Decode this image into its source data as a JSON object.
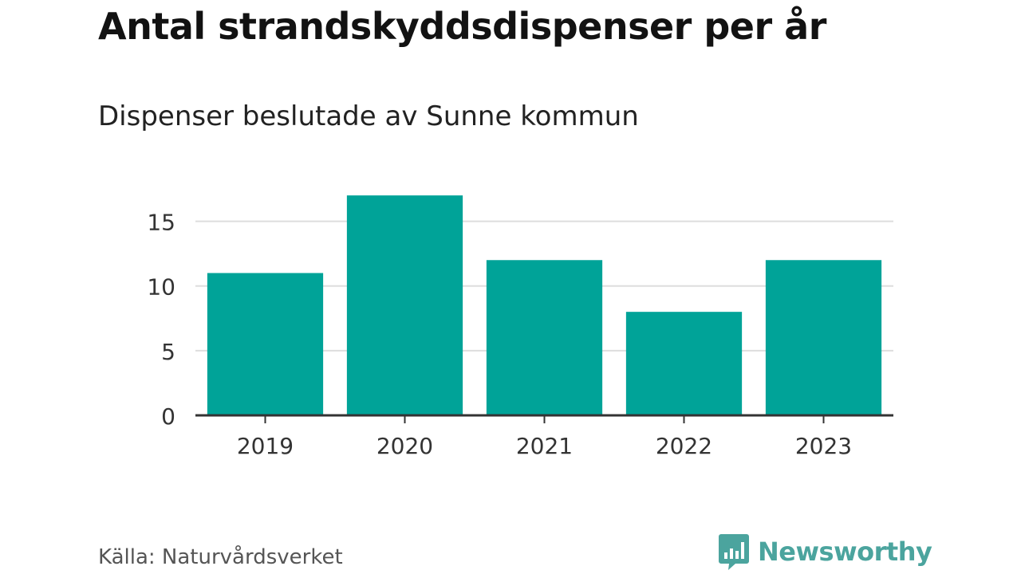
{
  "title": "Antal strandskyddsdispenser per år",
  "subtitle": "Dispenser beslutade av Sunne kommun",
  "source": "Källa: Naturvårdsverket",
  "brand": {
    "name": "Newsworthy",
    "icon": "newsworthy-logo-icon",
    "color": "#4ba49e"
  },
  "chart_data": {
    "type": "bar",
    "categories": [
      "2019",
      "2020",
      "2021",
      "2022",
      "2023"
    ],
    "values": [
      11,
      17,
      12,
      8,
      12
    ],
    "ylim": [
      0,
      17.5
    ],
    "yticks": [
      0,
      5,
      10,
      15
    ],
    "xlabel": "",
    "ylabel": "",
    "grid": true,
    "bar_color": "#00a398",
    "grid_color": "#dddddd",
    "axis_color": "#333333"
  }
}
